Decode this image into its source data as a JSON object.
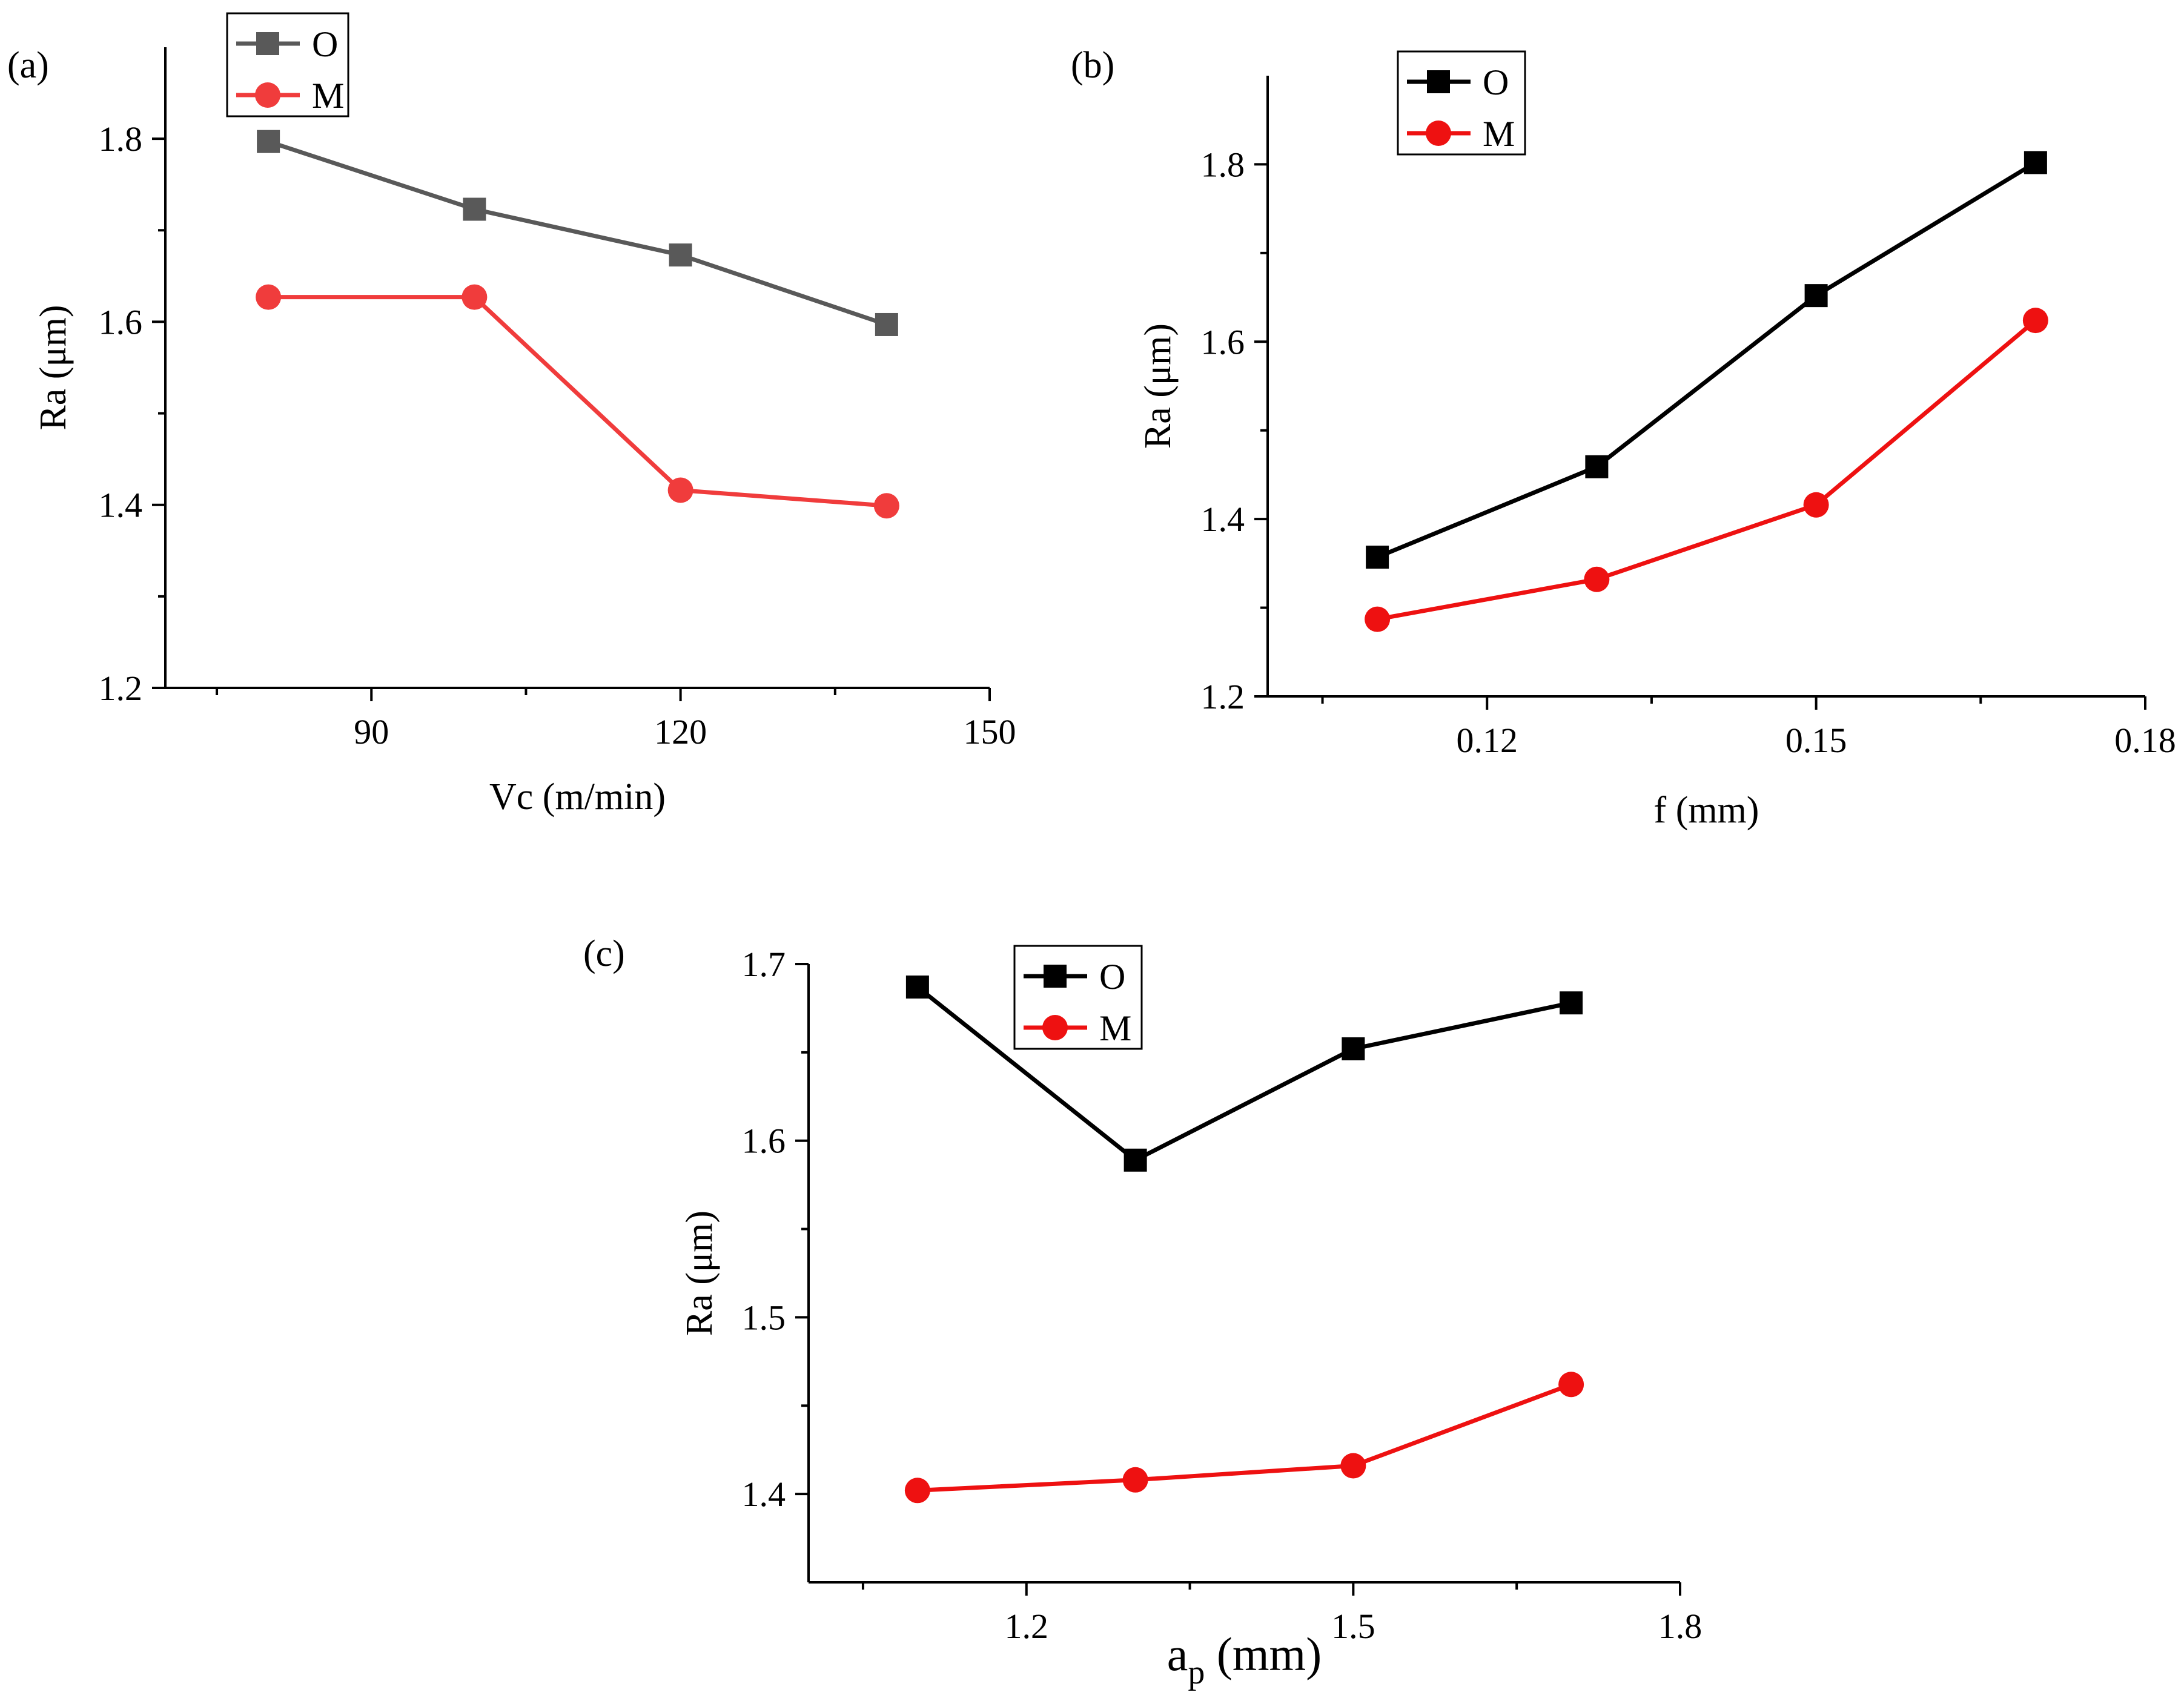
{
  "figure": {
    "description_free": true
  },
  "chart_data": [
    {
      "type": "line",
      "panel_label": "(a)",
      "xlabel": "Vc (m/min)",
      "ylabel": "Ra (μm)",
      "xlim": [
        70,
        150
      ],
      "ylim": [
        1.2,
        1.9
      ],
      "xticks": [
        90,
        120,
        150
      ],
      "xtick_labels": [
        "90",
        "120",
        "150"
      ],
      "yticks": [
        1.2,
        1.4,
        1.6,
        1.8
      ],
      "ytick_labels": [
        "1.2",
        "1.4",
        "1.6",
        "1.8"
      ],
      "x": [
        80,
        100,
        120,
        140
      ],
      "legend_position": "top-left",
      "series": [
        {
          "name": "O",
          "values": [
            1.797,
            1.723,
            1.673,
            1.597
          ],
          "color": "#595959",
          "marker": "square"
        },
        {
          "name": "M",
          "values": [
            1.627,
            1.627,
            1.416,
            1.399
          ],
          "color": "#f03c3c",
          "marker": "circle"
        }
      ]
    },
    {
      "type": "line",
      "panel_label": "(b)",
      "xlabel": "f (mm)",
      "ylabel": "Ra (μm)",
      "xlim": [
        0.1,
        0.18
      ],
      "ylim": [
        1.2,
        1.9
      ],
      "xticks": [
        0.12,
        0.15,
        0.18
      ],
      "xtick_labels": [
        "0.12",
        "0.15",
        "0.18"
      ],
      "yticks": [
        1.2,
        1.4,
        1.6,
        1.8
      ],
      "ytick_labels": [
        "1.2",
        "1.4",
        "1.6",
        "1.8"
      ],
      "x": [
        0.11,
        0.13,
        0.15,
        0.17
      ],
      "legend_position": "top-left",
      "series": [
        {
          "name": "O",
          "values": [
            1.357,
            1.459,
            1.652,
            1.802
          ],
          "color": "#000000",
          "marker": "square"
        },
        {
          "name": "M",
          "values": [
            1.287,
            1.332,
            1.416,
            1.624
          ],
          "color": "#ee1111",
          "marker": "circle"
        }
      ]
    },
    {
      "type": "line",
      "panel_label": "(c)",
      "xlabel": "a",
      "xlabel_sub": "p",
      "xlabel_unit": " (mm)",
      "ylabel": "Ra (μm)",
      "xlim": [
        1.0,
        1.8
      ],
      "ylim": [
        1.35,
        1.7
      ],
      "xticks": [
        1.2,
        1.5,
        1.8
      ],
      "xtick_labels": [
        "1.2",
        "1.5",
        "1.8"
      ],
      "yticks": [
        1.4,
        1.5,
        1.6,
        1.7
      ],
      "ytick_labels": [
        "1.4",
        "1.5",
        "1.6",
        "1.7"
      ],
      "x": [
        1.1,
        1.3,
        1.5,
        1.7
      ],
      "legend_position": "top-center",
      "series": [
        {
          "name": "O",
          "values": [
            1.687,
            1.589,
            1.652,
            1.678
          ],
          "color": "#000000",
          "marker": "square"
        },
        {
          "name": "M",
          "values": [
            1.402,
            1.408,
            1.416,
            1.462
          ],
          "color": "#ee1111",
          "marker": "circle"
        }
      ]
    }
  ]
}
